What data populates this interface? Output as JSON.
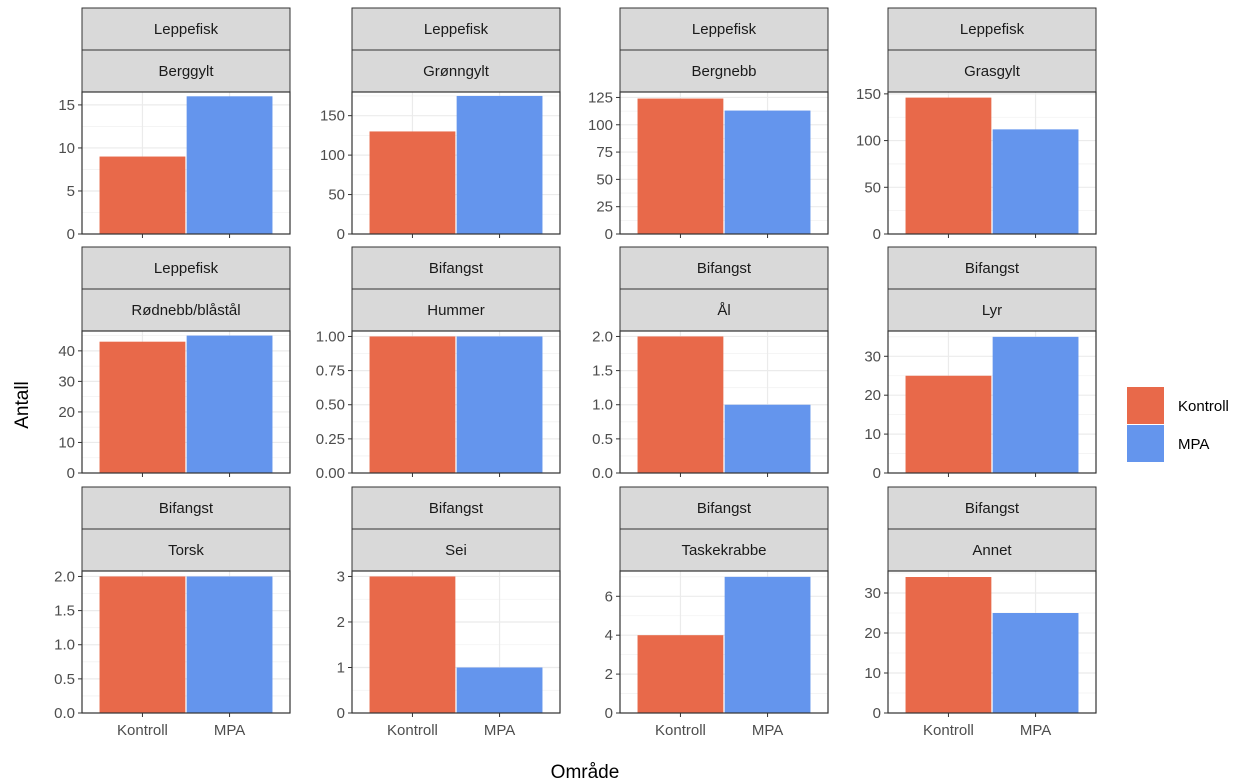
{
  "chart_data": {
    "type": "bar",
    "xlabel": "Område",
    "ylabel": "Antall",
    "categories": [
      "Kontroll",
      "MPA"
    ],
    "colors": {
      "Kontroll": "#E8694A",
      "MPA": "#6495ED"
    },
    "legend": {
      "position": "right",
      "entries": [
        "Kontroll",
        "MPA"
      ]
    },
    "grid": true,
    "panels": [
      {
        "group": "Leppefisk",
        "species": "Berggylt",
        "values": [
          9,
          16
        ],
        "ylim": [
          0,
          16.5
        ],
        "yticks": [
          0,
          5,
          10,
          15
        ],
        "ytick_labels": [
          "0",
          "5",
          "10",
          "15"
        ]
      },
      {
        "group": "Leppefisk",
        "species": "Grønngylt",
        "values": [
          130,
          175
        ],
        "ylim": [
          0,
          180
        ],
        "yticks": [
          0,
          50,
          100,
          150
        ],
        "ytick_labels": [
          "0",
          "50",
          "100",
          "150"
        ]
      },
      {
        "group": "Leppefisk",
        "species": "Bergnebb",
        "values": [
          124,
          113
        ],
        "ylim": [
          0,
          130
        ],
        "yticks": [
          0,
          25,
          50,
          75,
          100,
          125
        ],
        "ytick_labels": [
          "0",
          "25",
          "50",
          "75",
          "100",
          "125"
        ]
      },
      {
        "group": "Leppefisk",
        "species": "Grasgylt",
        "values": [
          146,
          112
        ],
        "ylim": [
          0,
          152
        ],
        "yticks": [
          0,
          50,
          100,
          150
        ],
        "ytick_labels": [
          "0",
          "50",
          "100",
          "150"
        ]
      },
      {
        "group": "Leppefisk",
        "species": "Rødnebb/blåstål",
        "values": [
          43,
          45
        ],
        "ylim": [
          0,
          46.5
        ],
        "yticks": [
          0,
          10,
          20,
          30,
          40
        ],
        "ytick_labels": [
          "0",
          "10",
          "20",
          "30",
          "40"
        ]
      },
      {
        "group": "Bifangst",
        "species": "Hummer",
        "values": [
          1,
          1
        ],
        "ylim": [
          0,
          1.04
        ],
        "yticks": [
          0,
          0.25,
          0.5,
          0.75,
          1
        ],
        "ytick_labels": [
          "0.00",
          "0.25",
          "0.50",
          "0.75",
          "1.00"
        ]
      },
      {
        "group": "Bifangst",
        "species": "Ål",
        "values": [
          2,
          1
        ],
        "ylim": [
          0,
          2.08
        ],
        "yticks": [
          0,
          0.5,
          1,
          1.5,
          2
        ],
        "ytick_labels": [
          "0.0",
          "0.5",
          "1.0",
          "1.5",
          "2.0"
        ]
      },
      {
        "group": "Bifangst",
        "species": "Lyr",
        "values": [
          25,
          35
        ],
        "ylim": [
          0,
          36.5
        ],
        "yticks": [
          0,
          10,
          20,
          30
        ],
        "ytick_labels": [
          "0",
          "10",
          "20",
          "30"
        ]
      },
      {
        "group": "Bifangst",
        "species": "Torsk",
        "values": [
          2,
          2
        ],
        "ylim": [
          0,
          2.08
        ],
        "yticks": [
          0,
          0.5,
          1,
          1.5,
          2
        ],
        "ytick_labels": [
          "0.0",
          "0.5",
          "1.0",
          "1.5",
          "2.0"
        ]
      },
      {
        "group": "Bifangst",
        "species": "Sei",
        "values": [
          3,
          1
        ],
        "ylim": [
          0,
          3.12
        ],
        "yticks": [
          0,
          1,
          2,
          3
        ],
        "ytick_labels": [
          "0",
          "1",
          "2",
          "3"
        ]
      },
      {
        "group": "Bifangst",
        "species": "Taskekrabbe",
        "values": [
          4,
          7
        ],
        "ylim": [
          0,
          7.3
        ],
        "yticks": [
          0,
          2,
          4,
          6
        ],
        "ytick_labels": [
          "0",
          "2",
          "4",
          "6"
        ]
      },
      {
        "group": "Bifangst",
        "species": "Annet",
        "values": [
          34,
          25
        ],
        "ylim": [
          0,
          35.5
        ],
        "yticks": [
          0,
          10,
          20,
          30
        ],
        "ytick_labels": [
          "0",
          "10",
          "20",
          "30"
        ]
      }
    ]
  }
}
